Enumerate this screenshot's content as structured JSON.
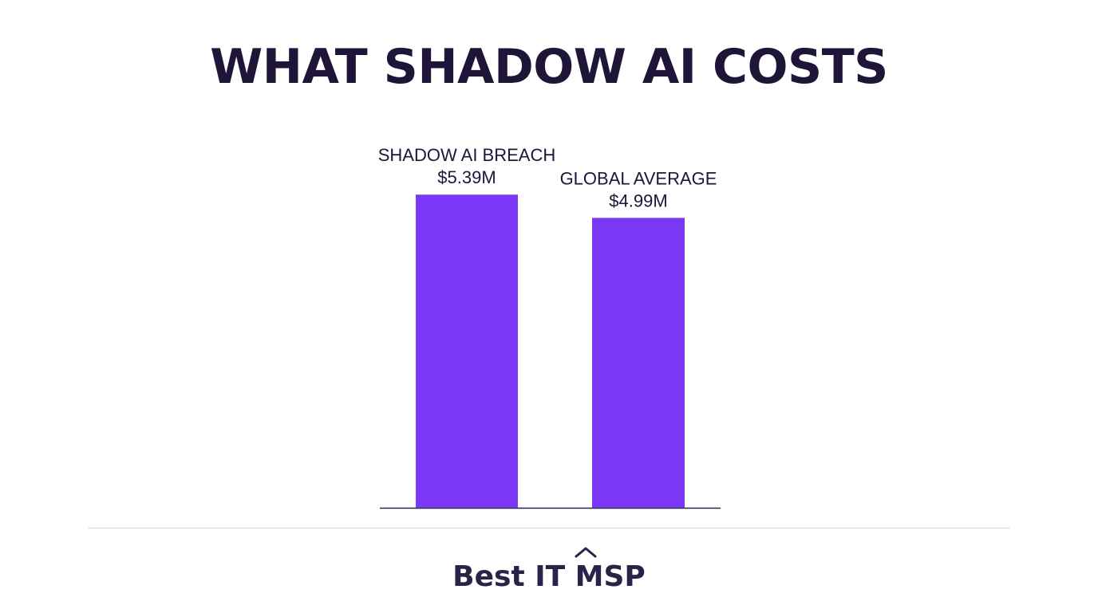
{
  "title": "WHAT SHADOW AI COSTS",
  "brand": "Best IT MSP",
  "colors": {
    "bar": "#7b39f7",
    "text": "#1e1538",
    "axis": "#2a2348",
    "divider": "#dcdce0"
  },
  "chart_data": {
    "type": "bar",
    "title": "WHAT SHADOW AI COSTS",
    "categories": [
      "SHADOW AI BREACH",
      "GLOBAL AVERAGE"
    ],
    "values": [
      5.39,
      4.99
    ],
    "value_labels": [
      "$5.39M",
      "$4.99M"
    ],
    "xlabel": "",
    "ylabel": "",
    "ylim": [
      0,
      5.9
    ],
    "grid": false,
    "legend": "none"
  }
}
